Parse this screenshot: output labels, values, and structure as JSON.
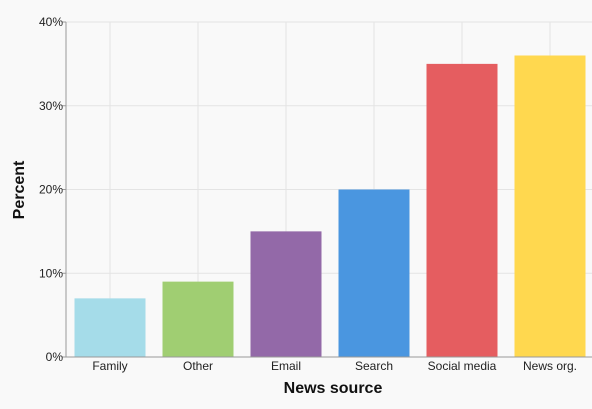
{
  "chart_data": {
    "type": "bar",
    "title": "",
    "xlabel": "News source",
    "ylabel": "Percent",
    "categories": [
      "Family",
      "Other",
      "Email",
      "Search",
      "Social media",
      "News org."
    ],
    "values": [
      7,
      9,
      15,
      20,
      35,
      36
    ],
    "colors": [
      "#a5dce9",
      "#a0ce72",
      "#9369a8",
      "#4a96e0",
      "#e55d60",
      "#ffd84f"
    ],
    "ylim": [
      0,
      40
    ],
    "yticks": [
      0,
      10,
      20,
      30,
      40
    ],
    "ytick_labels": [
      "0%",
      "10%",
      "20%",
      "30%",
      "40%"
    ],
    "grid": true,
    "legend": "none"
  }
}
